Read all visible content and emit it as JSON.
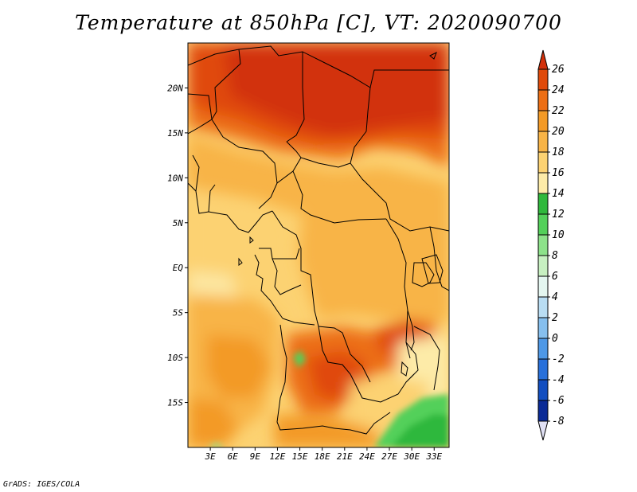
{
  "title": "Temperature at 850hPa [C], VT: 2020090700",
  "credit": "GrADS: IGES/COLA",
  "map": {
    "region": "Central Africa",
    "lon_range": [
      0,
      35
    ],
    "lat_range": [
      -20,
      25
    ],
    "lat_ticks": [
      {
        "value": 20,
        "label": "20N"
      },
      {
        "value": 15,
        "label": "15N"
      },
      {
        "value": 10,
        "label": "10N"
      },
      {
        "value": 5,
        "label": "5N"
      },
      {
        "value": 0,
        "label": "EQ"
      },
      {
        "value": -5,
        "label": "5S"
      },
      {
        "value": -10,
        "label": "10S"
      },
      {
        "value": -15,
        "label": "15S"
      }
    ],
    "lon_ticks": [
      {
        "value": 3,
        "label": "3E"
      },
      {
        "value": 6,
        "label": "6E"
      },
      {
        "value": 9,
        "label": "9E"
      },
      {
        "value": 12,
        "label": "12E"
      },
      {
        "value": 15,
        "label": "15E"
      },
      {
        "value": 18,
        "label": "18E"
      },
      {
        "value": 21,
        "label": "21E"
      },
      {
        "value": 24,
        "label": "24E"
      },
      {
        "value": 27,
        "label": "27E"
      },
      {
        "value": 30,
        "label": "30E"
      },
      {
        "value": 33,
        "label": "33E"
      }
    ]
  },
  "colorbar": {
    "levels": [
      26,
      24,
      22,
      20,
      18,
      16,
      14,
      12,
      10,
      8,
      6,
      4,
      2,
      0,
      -2,
      -4,
      -6,
      -8
    ],
    "labels": [
      "26",
      "24",
      "22",
      "20",
      "18",
      "16",
      "14",
      "12",
      "10",
      "8",
      "6",
      "4",
      "2",
      "0",
      "-2",
      "-4",
      "-6",
      "-8"
    ],
    "colors": [
      "#d2300a",
      "#e04a0a",
      "#ec6e14",
      "#f39a26",
      "#f8b446",
      "#fcd272",
      "#fdeba8",
      "#2fb83c",
      "#53d05a",
      "#8de28a",
      "#c7f0c1",
      "#e4f6f0",
      "#b9ddf3",
      "#86bfee",
      "#4e98e6",
      "#2870da",
      "#124ec0",
      "#0a2a96",
      "#0a1262"
    ],
    "upper_arrow_color": "#d2300a",
    "lower_arrow_color": "#e0e0f4"
  }
}
